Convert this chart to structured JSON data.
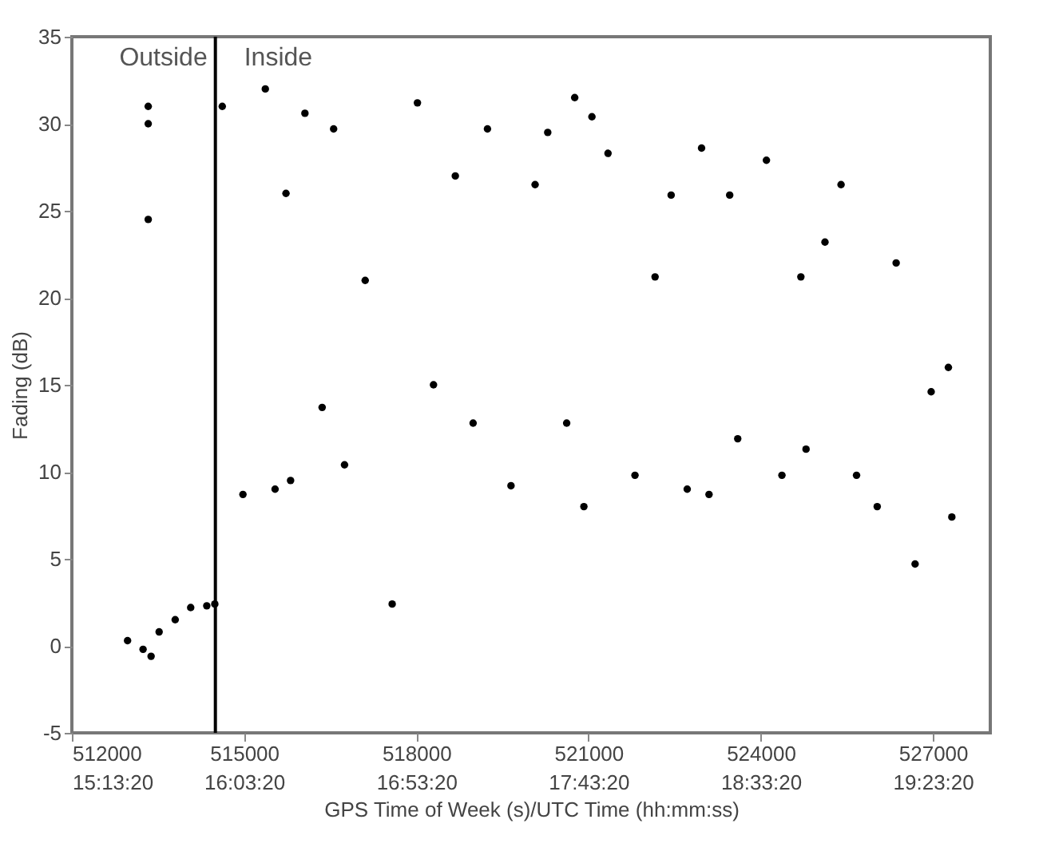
{
  "chart_data": {
    "type": "scatter",
    "xlabel": "GPS Time of Week (s)/UTC Time (hh:mm:ss)",
    "ylabel": "Fading (dB)",
    "xlim": [
      512000,
      528000
    ],
    "ylim": [
      -5,
      35
    ],
    "xticks": [
      512000,
      515000,
      518000,
      521000,
      524000,
      527000
    ],
    "x2lim": [
      15.22222,
      19.66667
    ],
    "x2ticks": [
      {
        "value": 15.22222,
        "label": "15:13:20"
      },
      {
        "value": 16.05556,
        "label": "16:03:20"
      },
      {
        "value": 16.88889,
        "label": "16:53:20"
      },
      {
        "value": 17.72222,
        "label": "17:43:20"
      },
      {
        "value": 18.55556,
        "label": "18:33:20"
      },
      {
        "value": 19.38889,
        "label": "19:23:20"
      }
    ],
    "yticks": [
      -5,
      0,
      5,
      10,
      15,
      20,
      25,
      30,
      35
    ],
    "grid": false,
    "marker": "circle",
    "ref_lines": [
      {
        "axis": "x",
        "value": 514500,
        "color": "#000000"
      }
    ],
    "annotations": [
      "Outside",
      "Inside"
    ],
    "series": [
      {
        "color": "#000000",
        "x": [
          512970,
          513240,
          513330,
          513330,
          513330,
          513380,
          513520,
          513800,
          514070,
          514350,
          514490,
          514620,
          514980,
          515370,
          515540,
          515730,
          515810,
          516060,
          516360,
          516560,
          516750,
          517110,
          517580,
          518020,
          518300,
          518680,
          518990,
          519240,
          519650,
          520070,
          520290,
          520620,
          520760,
          520920,
          521060,
          521340,
          521810,
          522160,
          522440,
          522720,
          522970,
          523100,
          523460,
          523600,
          524100,
          524370,
          524700,
          524790,
          525120,
          525400,
          525670,
          526030,
          526360,
          526690,
          526970,
          527270,
          527330
        ],
        "values": [
          0.3,
          -0.2,
          31,
          30,
          24.5,
          -0.6,
          0.8,
          1.5,
          2.2,
          2.3,
          2.4,
          31,
          8.7,
          32,
          9,
          26,
          9.5,
          30.6,
          13.7,
          29.7,
          10.4,
          21,
          2.4,
          31.2,
          15,
          27,
          12.8,
          29.7,
          9.2,
          26.5,
          29.5,
          12.8,
          31.5,
          8,
          30.4,
          28.3,
          9.8,
          21.2,
          25.9,
          9,
          28.6,
          8.7,
          25.9,
          11.9,
          27.9,
          9.8,
          21.2,
          11.3,
          23.2,
          26.5,
          9.8,
          8,
          22,
          4.7,
          14.6,
          16,
          7.4
        ]
      }
    ]
  }
}
